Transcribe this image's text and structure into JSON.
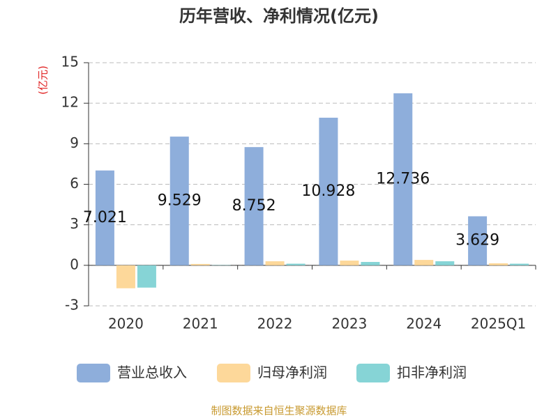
{
  "chart_data": {
    "type": "bar",
    "title": "历年营收、净利情况(亿元)",
    "y_label": "(亿元)",
    "categories": [
      "2020",
      "2021",
      "2022",
      "2023",
      "2024",
      "2025Q1"
    ],
    "series": [
      {
        "name": "营业总收入",
        "color": "#8eaedb",
        "values": [
          7.021,
          9.529,
          8.752,
          10.928,
          12.736,
          3.629
        ],
        "show_labels": true
      },
      {
        "name": "归母净利润",
        "color": "#fdd89a",
        "values": [
          -1.7,
          0.1,
          0.3,
          0.35,
          0.4,
          0.15
        ],
        "show_labels": false
      },
      {
        "name": "扣非净利润",
        "color": "#86d4d6",
        "values": [
          -1.65,
          0.02,
          0.12,
          0.25,
          0.3,
          0.12
        ],
        "show_labels": false
      }
    ],
    "ylim": [
      -3,
      15
    ],
    "yticks": [
      -3,
      0,
      3,
      6,
      9,
      12,
      15
    ],
    "grid": true,
    "legend": "bottom",
    "source": "制图数据来自恒生聚源数据库"
  }
}
